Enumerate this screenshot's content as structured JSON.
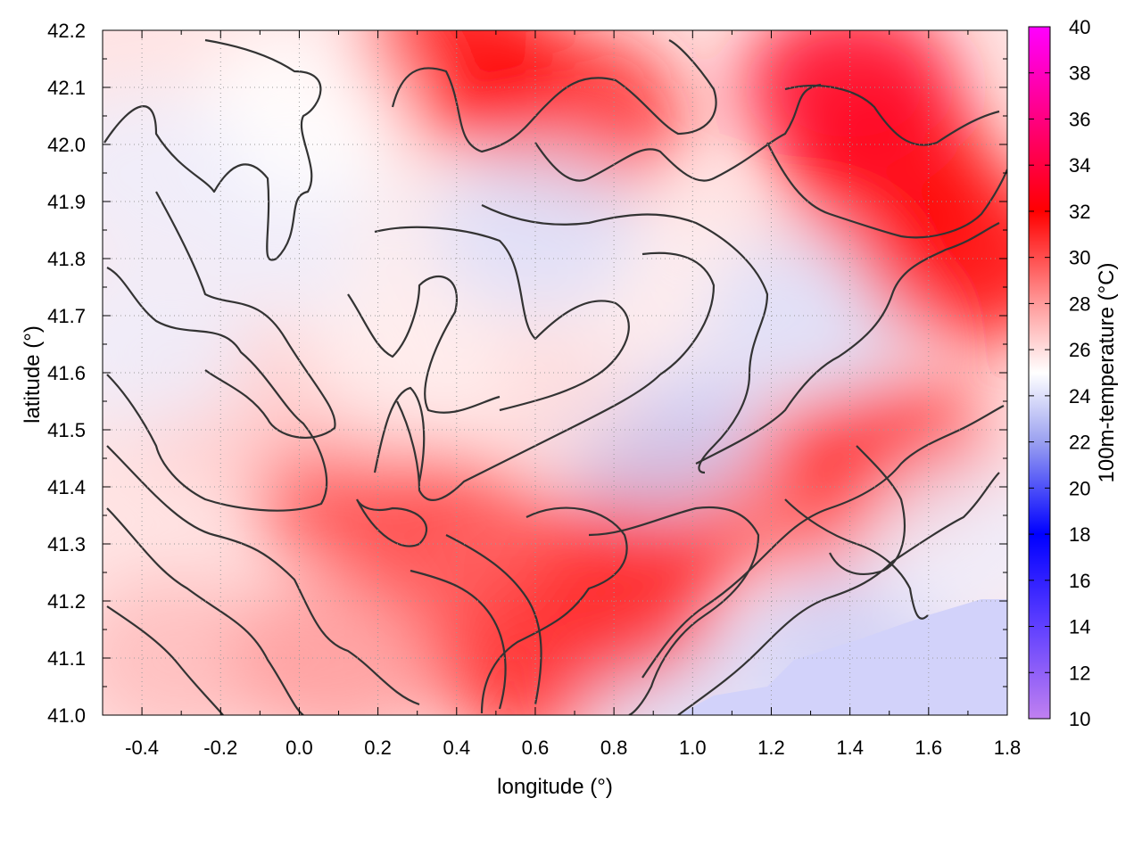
{
  "chart_data": {
    "type": "heatmap",
    "title": "",
    "xlabel": "longitude (°)",
    "ylabel": "latitude (°)",
    "colorbar_label": "100m-temperature (°C)",
    "xlim": [
      -0.5,
      1.8
    ],
    "ylim": [
      41.0,
      42.2
    ],
    "x_ticks": [
      "-0.4",
      "-0.2",
      "0.0",
      "0.2",
      "0.4",
      "0.6",
      "0.8",
      "1.0",
      "1.2",
      "1.4",
      "1.6",
      "1.8"
    ],
    "x_tick_values": [
      -0.4,
      -0.2,
      0.0,
      0.2,
      0.4,
      0.6,
      0.8,
      1.0,
      1.2,
      1.4,
      1.6,
      1.8
    ],
    "y_ticks": [
      "41.0",
      "41.1",
      "41.2",
      "41.3",
      "41.4",
      "41.5",
      "41.6",
      "41.7",
      "41.8",
      "41.9",
      "42.0",
      "42.1",
      "42.2"
    ],
    "y_tick_values": [
      41.0,
      41.1,
      41.2,
      41.3,
      41.4,
      41.5,
      41.6,
      41.7,
      41.8,
      41.9,
      42.0,
      42.1,
      42.2
    ],
    "colorbar_range": [
      10,
      40
    ],
    "colorbar_ticks": [
      "10",
      "12",
      "14",
      "16",
      "18",
      "20",
      "22",
      "24",
      "26",
      "28",
      "30",
      "32",
      "34",
      "36",
      "38",
      "40"
    ],
    "colorbar_tick_values": [
      10,
      12,
      14,
      16,
      18,
      20,
      22,
      24,
      26,
      28,
      30,
      32,
      34,
      36,
      38,
      40
    ],
    "colormap": [
      {
        "value": 10,
        "color": "#c080f0"
      },
      {
        "value": 14,
        "color": "#6040ff"
      },
      {
        "value": 18,
        "color": "#0000ff"
      },
      {
        "value": 22,
        "color": "#9aa0f0"
      },
      {
        "value": 25,
        "color": "#ffffff"
      },
      {
        "value": 28,
        "color": "#ff9a9a"
      },
      {
        "value": 32,
        "color": "#ff0000"
      },
      {
        "value": 35,
        "color": "#ff0060"
      },
      {
        "value": 40,
        "color": "#ff00ff"
      }
    ],
    "grid": true,
    "overlay": "terrain contour lines (dark gray)",
    "field_samples": [
      {
        "lon": -0.3,
        "lat": 41.1,
        "temp": 27
      },
      {
        "lon": 0.1,
        "lat": 41.1,
        "temp": 28
      },
      {
        "lon": 0.6,
        "lat": 41.1,
        "temp": 31
      },
      {
        "lon": 1.4,
        "lat": 41.1,
        "temp": 23.5
      },
      {
        "lon": 1.0,
        "lat": 41.05,
        "temp": 24
      },
      {
        "lon": 0.8,
        "lat": 41.2,
        "temp": 31
      },
      {
        "lon": 0.4,
        "lat": 41.3,
        "temp": 30
      },
      {
        "lon": 0.15,
        "lat": 41.4,
        "temp": 30
      },
      {
        "lon": 0.95,
        "lat": 41.35,
        "temp": 31
      },
      {
        "lon": 1.3,
        "lat": 41.4,
        "temp": 29
      },
      {
        "lon": 1.5,
        "lat": 41.45,
        "temp": 31
      },
      {
        "lon": 1.7,
        "lat": 41.3,
        "temp": 24.5
      },
      {
        "lon": 0.9,
        "lat": 41.5,
        "temp": 23.5
      },
      {
        "lon": 0.6,
        "lat": 41.6,
        "temp": 26
      },
      {
        "lon": 0.25,
        "lat": 41.6,
        "temp": 25.5
      },
      {
        "lon": -0.2,
        "lat": 41.55,
        "temp": 26.5
      },
      {
        "lon": -0.4,
        "lat": 41.65,
        "temp": 24.5
      },
      {
        "lon": 0.0,
        "lat": 41.85,
        "temp": 24.5
      },
      {
        "lon": 0.4,
        "lat": 41.8,
        "temp": 25.5
      },
      {
        "lon": 0.9,
        "lat": 41.75,
        "temp": 25.5
      },
      {
        "lon": 1.3,
        "lat": 41.7,
        "temp": 24
      },
      {
        "lon": 1.5,
        "lat": 41.95,
        "temp": 32
      },
      {
        "lon": 1.7,
        "lat": 41.8,
        "temp": 32
      },
      {
        "lon": 1.4,
        "lat": 42.1,
        "temp": 33
      },
      {
        "lon": 0.7,
        "lat": 42.05,
        "temp": 31
      },
      {
        "lon": 0.4,
        "lat": 42.15,
        "temp": 32
      },
      {
        "lon": 0.0,
        "lat": 42.05,
        "temp": 25
      },
      {
        "lon": -0.4,
        "lat": 41.95,
        "temp": 24.5
      },
      {
        "lon": 0.6,
        "lat": 41.85,
        "temp": 24
      }
    ]
  }
}
